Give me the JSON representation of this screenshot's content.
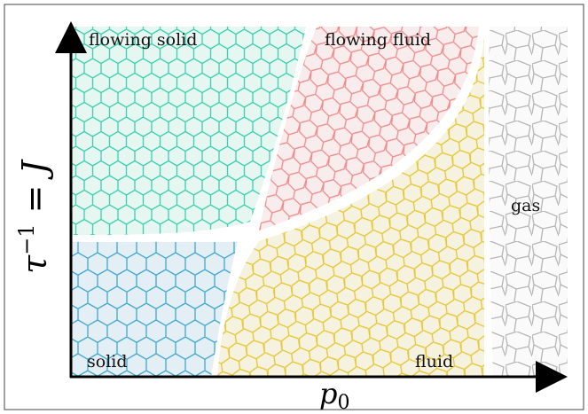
{
  "regions": [
    {
      "label": "flowing solid"
    },
    {
      "label": "flowing fluid"
    },
    {
      "label": "gas"
    },
    {
      "label": "solid"
    },
    {
      "label": "fluid"
    }
  ],
  "y_axis_label": {
    "base": "τ",
    "sup": "−1",
    "rest": " = J"
  },
  "x_axis_label": {
    "base": "p",
    "sub": "0"
  }
}
